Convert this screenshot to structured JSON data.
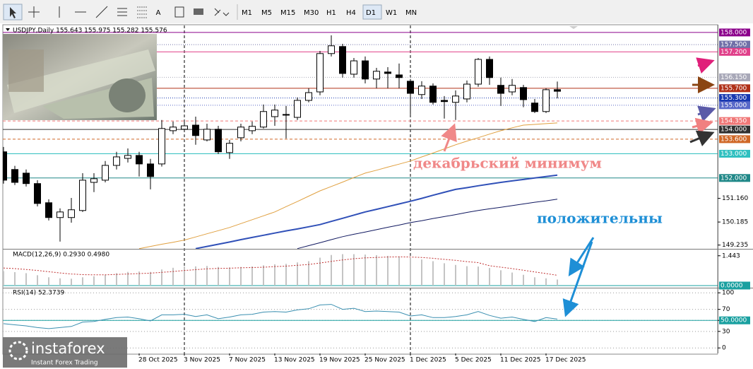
{
  "toolbar": {
    "tools": [
      "A"
    ],
    "timeframes": [
      "M1",
      "M5",
      "M15",
      "M30",
      "H1",
      "H4",
      "D1",
      "W1",
      "MN"
    ],
    "active": 6
  },
  "logo": {
    "name": "instaforex",
    "tagline": "Instant Forex Trading"
  },
  "chart_data": [
    {
      "type": "candlestick",
      "title": "USDJPY,Daily  155.643 155.975 155.282 155.576",
      "categories": [
        null,
        null,
        null,
        null,
        null,
        null,
        null,
        null,
        null,
        null,
        null,
        null,
        "28 Oct 2025",
        null,
        null,
        null,
        "3 Nov 2025",
        null,
        null,
        null,
        "7 Nov 2025",
        null,
        null,
        null,
        "13 Nov 2025",
        null,
        null,
        null,
        "19 Nov 2025",
        null,
        null,
        null,
        "25 Nov 2025",
        null,
        null,
        null,
        "1 Dec 2025",
        null,
        null,
        null,
        "5 Dec 2025",
        null,
        null,
        null,
        "11 Dec 2025",
        null,
        null,
        null,
        "17 Dec 2025",
        null
      ],
      "open": [
        153.08,
        152.35,
        152.2,
        151.77,
        150.98,
        150.37,
        150.37,
        150.66,
        151.82,
        151.91,
        152.52,
        152.81,
        152.93,
        152.58,
        152.58,
        153.95,
        154.01,
        154.18,
        153.57,
        154.01,
        153.05,
        153.66,
        153.95,
        154.1,
        154.53,
        154.62,
        154.5,
        155.2,
        155.55,
        157.13,
        157.42,
        156.28,
        156.83,
        156.08,
        156.37,
        156.25,
        155.99,
        155.44,
        155.79,
        155.2,
        155.12,
        155.26,
        155.87,
        156.89,
        155.82,
        155.55,
        155.73,
        155.09,
        154.74,
        155.643
      ],
      "high": [
        153.28,
        152.5,
        152.35,
        151.91,
        151.12,
        150.75,
        151.18,
        152.2,
        152.2,
        152.7,
        153.08,
        153.22,
        153.08,
        152.79,
        154.39,
        154.33,
        154.39,
        154.53,
        154.24,
        154.15,
        153.57,
        154.24,
        154.33,
        155.03,
        155.03,
        154.97,
        155.32,
        155.7,
        157.24,
        157.88,
        157.53,
        156.95,
        157.01,
        156.54,
        156.57,
        156.72,
        156.08,
        155.99,
        155.9,
        155.38,
        155.61,
        156.02,
        156.95,
        157.01,
        156.14,
        156.08,
        155.84,
        155.26,
        155.7,
        155.975
      ],
      "low": [
        151.77,
        151.71,
        151.65,
        150.83,
        150.25,
        149.38,
        150.16,
        150.6,
        151.42,
        151.82,
        152.35,
        152.64,
        152.06,
        151.53,
        152.47,
        153.81,
        153.92,
        153.37,
        153.51,
        152.99,
        152.79,
        153.51,
        153.81,
        154.04,
        154.15,
        153.63,
        154.39,
        155.12,
        155.41,
        157.01,
        156.14,
        156.14,
        155.9,
        155.7,
        155.7,
        155.7,
        154.62,
        155.26,
        155.03,
        154.45,
        154.39,
        155.12,
        155.76,
        155.84,
        154.97,
        155.41,
        154.92,
        154.68,
        154.68,
        155.282
      ],
      "close": [
        151.91,
        151.82,
        151.77,
        150.95,
        150.37,
        150.6,
        150.69,
        151.91,
        151.97,
        152.52,
        152.87,
        152.93,
        152.58,
        152.06,
        154.04,
        154.1,
        154.15,
        153.75,
        154.01,
        153.08,
        153.43,
        154.1,
        154.13,
        154.74,
        154.8,
        154.59,
        155.2,
        155.52,
        157.13,
        157.45,
        156.31,
        156.83,
        156.08,
        156.4,
        156.31,
        156.14,
        155.49,
        155.79,
        155.12,
        155.15,
        155.38,
        155.87,
        156.89,
        156.14,
        155.49,
        155.82,
        155.23,
        154.74,
        155.64,
        155.576
      ],
      "up_color": "#ffffff",
      "down_color": "#000000",
      "overlays": [
        {
          "color": "#e0a040",
          "width": 1,
          "values": [
            null,
            null,
            null,
            null,
            null,
            null,
            null,
            null,
            null,
            null,
            null,
            null,
            149.09,
            149.18,
            149.27,
            149.35,
            149.44,
            149.57,
            149.7,
            149.83,
            149.96,
            150.12,
            150.28,
            150.44,
            150.6,
            150.82,
            151.03,
            151.25,
            151.47,
            151.65,
            151.83,
            152.02,
            152.2,
            152.32,
            152.45,
            152.57,
            152.7,
            152.87,
            153.03,
            153.2,
            153.37,
            153.52,
            153.66,
            153.81,
            153.95,
            154.07,
            154.18,
            154.21,
            154.24,
            154.27
          ]
        },
        {
          "color": "#3050b8",
          "width": 2,
          "values": [
            null,
            null,
            null,
            null,
            null,
            null,
            null,
            null,
            null,
            null,
            null,
            null,
            null,
            null,
            null,
            null,
            null,
            149.09,
            149.18,
            149.27,
            149.36,
            149.46,
            149.55,
            149.64,
            149.73,
            149.82,
            149.9,
            149.99,
            150.08,
            150.21,
            150.34,
            150.47,
            150.6,
            150.71,
            150.82,
            150.93,
            151.04,
            151.16,
            151.29,
            151.41,
            151.53,
            151.6,
            151.68,
            151.75,
            151.82,
            151.88,
            151.94,
            152.0,
            152.06,
            152.12
          ]
        },
        {
          "color": "#101860",
          "width": 1,
          "values": [
            null,
            null,
            null,
            null,
            null,
            null,
            null,
            null,
            null,
            null,
            null,
            null,
            null,
            null,
            null,
            null,
            null,
            null,
            null,
            null,
            null,
            null,
            null,
            null,
            null,
            null,
            149.09,
            149.21,
            149.33,
            149.46,
            149.58,
            149.68,
            149.77,
            149.87,
            149.97,
            150.06,
            150.16,
            150.24,
            150.33,
            150.41,
            150.49,
            150.58,
            150.66,
            150.73,
            150.79,
            150.86,
            150.93,
            151.0,
            151.06,
            151.13
          ]
        }
      ],
      "ylim": [
        149.08,
        158.26
      ],
      "yticks": [
        {
          "value": 151.16,
          "label": "151.160"
        },
        {
          "value": 150.185,
          "label": "150.185"
        },
        {
          "value": 149.235,
          "label": "149.235"
        }
      ],
      "levels": [
        {
          "value": 158,
          "label": "158.000",
          "color": "#8b008b",
          "style": "solid"
        },
        {
          "value": 157.5,
          "label": "157.500",
          "color": "#7070a8",
          "style": "dotted"
        },
        {
          "value": 157.2,
          "label": "157.200",
          "color": "#e0408a",
          "style": "solid"
        },
        {
          "value": 156.15,
          "label": "156.150",
          "color": "#a8a8b8",
          "style": "dotted"
        },
        {
          "value": 155.7,
          "label": "155.700",
          "color": "#b03018",
          "style": "solid"
        },
        {
          "value": 155.3,
          "label": "155.300",
          "color": "#1838b0",
          "style": "dotted"
        },
        {
          "value": 155,
          "label": "155.000",
          "color": "#5868c8",
          "style": "dotted"
        },
        {
          "value": 154.35,
          "label": "154.350",
          "color": "#f07878",
          "style": "dashed"
        },
        {
          "value": 154,
          "label": "154.000",
          "color": "#303030",
          "style": "solid"
        },
        {
          "value": 153.6,
          "label": "153.600",
          "color": "#d06828",
          "style": "dashed"
        },
        {
          "value": 153,
          "label": "153.000",
          "color": "#30c0c0",
          "style": "solid"
        },
        {
          "value": 152,
          "label": "152.000",
          "color": "#208888",
          "style": "solid"
        }
      ],
      "annotations": [
        {
          "text": "декабрьский минимум",
          "color": "#f08888"
        },
        {
          "text": "положительны",
          "color": "#1e8fd6"
        }
      ]
    },
    {
      "type": "bar",
      "title": "MACD(12,26,9) 0.2930 0.4980",
      "color": "#c4c4c4",
      "values": [
        0.7,
        0.65,
        0.6,
        0.5,
        0.4,
        0.35,
        0.33,
        0.4,
        0.45,
        0.52,
        0.6,
        0.66,
        0.68,
        0.66,
        0.78,
        0.86,
        0.92,
        0.93,
        0.95,
        0.9,
        0.88,
        0.9,
        0.93,
        0.98,
        1.03,
        1.05,
        1.12,
        1.18,
        1.35,
        1.48,
        1.52,
        1.52,
        1.5,
        1.47,
        1.44,
        1.41,
        1.33,
        1.26,
        1.18,
        1.08,
        1.0,
        0.94,
        0.92,
        0.85,
        0.74,
        0.63,
        0.52,
        0.4,
        0.35,
        0.293
      ],
      "signal": {
        "color": "#c03030",
        "values": [
          0.85,
          0.82,
          0.78,
          0.73,
          0.67,
          0.61,
          0.56,
          0.53,
          0.52,
          0.52,
          0.54,
          0.56,
          0.58,
          0.6,
          0.64,
          0.68,
          0.73,
          0.77,
          0.81,
          0.83,
          0.84,
          0.86,
          0.87,
          0.89,
          0.92,
          0.94,
          0.98,
          1.02,
          1.09,
          1.17,
          1.24,
          1.3,
          1.34,
          1.36,
          1.38,
          1.39,
          1.38,
          1.36,
          1.32,
          1.27,
          1.22,
          1.16,
          1.11,
          0.96,
          0.89,
          0.82,
          0.74,
          0.66,
          0.58,
          0.498
        ]
      },
      "ylim": [
        -0.07,
        1.71
      ],
      "yticks": [
        1.443
      ],
      "levels": [
        {
          "value": 0,
          "label": "0.0000",
          "color": "#1aa0a0",
          "style": "solid"
        }
      ]
    },
    {
      "type": "line",
      "title": "RSI(14) 52.3739",
      "color": "#3a8fb0",
      "values": [
        44,
        42,
        40,
        37,
        35,
        37,
        39,
        47,
        48,
        52,
        55,
        56,
        53,
        49,
        60,
        60,
        61,
        57,
        60,
        53,
        56,
        60,
        61,
        65,
        66,
        65,
        69,
        71,
        78,
        79,
        70,
        72,
        66,
        67,
        66,
        65,
        58,
        60,
        55,
        55,
        57,
        60,
        66,
        59,
        54,
        56,
        52,
        48,
        55,
        52.3739
      ],
      "ylim": [
        -10,
        108
      ],
      "yticks": [
        100,
        70,
        50,
        30,
        0
      ],
      "grid": true,
      "levels": [
        {
          "value": 50,
          "label": "50.0000",
          "color": "#1aa0a0",
          "style": "solid"
        }
      ]
    }
  ]
}
